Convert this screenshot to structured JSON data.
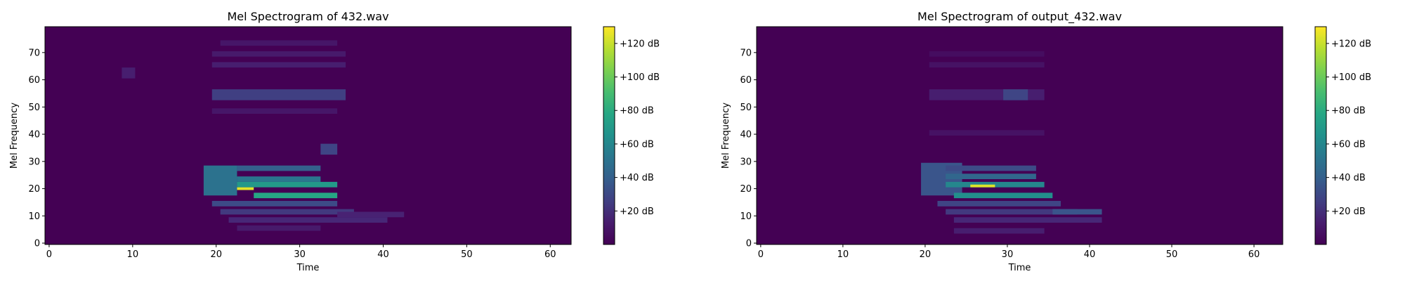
{
  "chart_data": [
    {
      "type": "heatmap",
      "title": "Mel Spectrogram of 432.wav",
      "xlabel": "Time",
      "ylabel": "Mel Frequency",
      "x_range": [
        -0.5,
        62.5
      ],
      "y_range": [
        -0.5,
        79.5
      ],
      "x_ticks": [
        0,
        10,
        20,
        30,
        40,
        50,
        60
      ],
      "y_ticks": [
        0,
        10,
        20,
        30,
        40,
        50,
        60,
        70
      ],
      "n_time_frames": 63,
      "n_mel_bins": 80,
      "background_db": 0,
      "colorbar": {
        "range": [
          0,
          130
        ],
        "ticks": [
          20,
          40,
          60,
          80,
          100,
          120
        ],
        "labels": [
          "+20 dB",
          "+40 dB",
          "+60 dB",
          "+80 dB",
          "+100 dB",
          "+120 dB"
        ],
        "colormap": "viridis"
      },
      "features": [
        {
          "t": [
            8.7,
            10.3
          ],
          "f": [
            61,
            64
          ],
          "db": 14
        },
        {
          "t": [
            19.5,
            35.5
          ],
          "f": [
            65,
            66
          ],
          "db": 14
        },
        {
          "t": [
            19.5,
            35.5
          ],
          "f": [
            69,
            70
          ],
          "db": 12
        },
        {
          "t": [
            20.5,
            34.5
          ],
          "f": [
            73,
            74
          ],
          "db": 10
        },
        {
          "t": [
            19.5,
            35.5
          ],
          "f": [
            53,
            56
          ],
          "db": 26
        },
        {
          "t": [
            19.5,
            34.5
          ],
          "f": [
            48,
            49
          ],
          "db": 10
        },
        {
          "t": [
            32.5,
            34.5
          ],
          "f": [
            33,
            36
          ],
          "db": 28
        },
        {
          "t": [
            18.5,
            22.5
          ],
          "f": [
            18,
            28
          ],
          "db": 50
        },
        {
          "t": [
            22.5,
            32.5
          ],
          "f": [
            23,
            24
          ],
          "db": 52
        },
        {
          "t": [
            22.5,
            32.5
          ],
          "f": [
            27,
            28
          ],
          "db": 40
        },
        {
          "t": [
            22.5,
            34.5
          ],
          "f": [
            21,
            22
          ],
          "db": 70
        },
        {
          "t": [
            24.5,
            34.5
          ],
          "f": [
            17,
            18
          ],
          "db": 78
        },
        {
          "t": [
            22.5,
            24.5
          ],
          "f": [
            20,
            20
          ],
          "db": 125
        },
        {
          "t": [
            19.5,
            34.5
          ],
          "f": [
            14,
            15
          ],
          "db": 30
        },
        {
          "t": [
            20.5,
            36.5
          ],
          "f": [
            11,
            12
          ],
          "db": 24
        },
        {
          "t": [
            21.5,
            40.5
          ],
          "f": [
            8,
            9
          ],
          "db": 18
        },
        {
          "t": [
            34.5,
            42.5
          ],
          "f": [
            10,
            11
          ],
          "db": 16
        },
        {
          "t": [
            22.5,
            32.5
          ],
          "f": [
            5,
            6
          ],
          "db": 12
        }
      ]
    },
    {
      "type": "heatmap",
      "title": "Mel Spectrogram of output_432.wav",
      "xlabel": "Time",
      "ylabel": "Mel Frequency",
      "x_range": [
        -0.5,
        63.5
      ],
      "y_range": [
        -0.5,
        79.5
      ],
      "x_ticks": [
        0,
        10,
        20,
        30,
        40,
        50,
        60
      ],
      "y_ticks": [
        0,
        10,
        20,
        30,
        40,
        50,
        60,
        70
      ],
      "n_time_frames": 64,
      "n_mel_bins": 80,
      "background_db": 0,
      "colorbar": {
        "range": [
          0,
          130
        ],
        "ticks": [
          20,
          40,
          60,
          80,
          100,
          120
        ],
        "labels": [
          "+20 dB",
          "+40 dB",
          "+60 dB",
          "+80 dB",
          "+100 dB",
          "+120 dB"
        ],
        "colormap": "viridis"
      },
      "features": [
        {
          "t": [
            20.5,
            34.5
          ],
          "f": [
            65,
            66
          ],
          "db": 8
        },
        {
          "t": [
            20.5,
            34.5
          ],
          "f": [
            69,
            70
          ],
          "db": 6
        },
        {
          "t": [
            20.5,
            34.5
          ],
          "f": [
            53,
            56
          ],
          "db": 14
        },
        {
          "t": [
            29.5,
            32.5
          ],
          "f": [
            53,
            56
          ],
          "db": 28
        },
        {
          "t": [
            20.5,
            34.5
          ],
          "f": [
            40,
            41
          ],
          "db": 8
        },
        {
          "t": [
            19.5,
            24.5
          ],
          "f": [
            18,
            29
          ],
          "db": 34
        },
        {
          "t": [
            22.5,
            33.5
          ],
          "f": [
            24,
            25
          ],
          "db": 44
        },
        {
          "t": [
            22.5,
            33.5
          ],
          "f": [
            27,
            28
          ],
          "db": 30
        },
        {
          "t": [
            22.5,
            34.5
          ],
          "f": [
            21,
            22
          ],
          "db": 60
        },
        {
          "t": [
            23.5,
            35.5
          ],
          "f": [
            17,
            18
          ],
          "db": 64
        },
        {
          "t": [
            25.5,
            28.5
          ],
          "f": [
            21,
            21
          ],
          "db": 124
        },
        {
          "t": [
            21.5,
            36.5
          ],
          "f": [
            14,
            15
          ],
          "db": 28
        },
        {
          "t": [
            22.5,
            38.5
          ],
          "f": [
            11,
            12
          ],
          "db": 24
        },
        {
          "t": [
            23.5,
            41.5
          ],
          "f": [
            8,
            9
          ],
          "db": 18
        },
        {
          "t": [
            35.5,
            41.5
          ],
          "f": [
            11,
            12
          ],
          "db": 34
        },
        {
          "t": [
            23.5,
            34.5
          ],
          "f": [
            4,
            5
          ],
          "db": 14
        }
      ]
    }
  ]
}
